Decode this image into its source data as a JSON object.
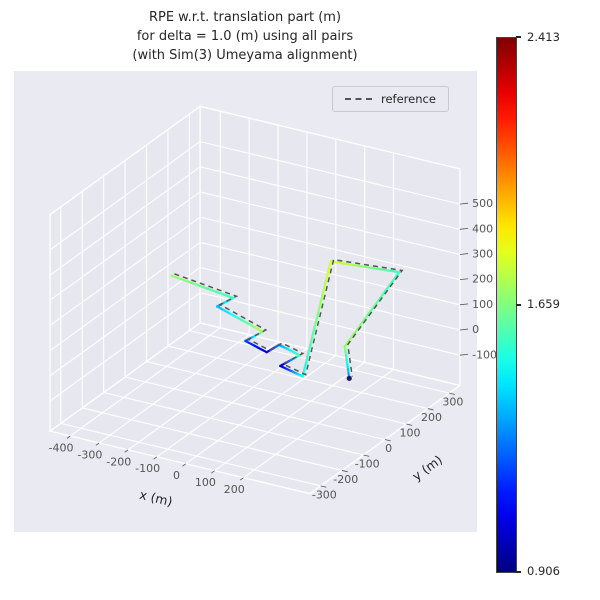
{
  "title": {
    "lines": [
      "RPE w.r.t. translation part (m)",
      "for delta = 1.0 (m) using all pairs",
      "(with Sim(3) Umeyama alignment)"
    ]
  },
  "legend": {
    "label": "reference"
  },
  "colorbar": {
    "max": "2.413",
    "mid": "1.659",
    "min": "0.906"
  },
  "styles": {
    "axes_bg": "#eaeaf2",
    "pane_bg": "#e7e7f0",
    "grid": "#ffffff",
    "tick_color": "#555555",
    "label_color": "#262626",
    "reference_color": "#555555",
    "end_marker_color": "#1b1b6e"
  },
  "chart_data": {
    "type": "line",
    "subtype": "trajectory-3d",
    "title": "RPE w.r.t. translation part (m) for delta = 1.0 (m) using all pairs (with Sim(3) Umeyama alignment)",
    "xlabel": "x (m)",
    "ylabel": "y (m)",
    "zlabel": "",
    "xlim": [
      -470,
      430
    ],
    "ylim": [
      -350,
      350
    ],
    "zlim": [
      -220,
      640
    ],
    "xticks": [
      -400,
      -300,
      -200,
      -100,
      0,
      100,
      200
    ],
    "yticks": [
      -300,
      -200,
      -100,
      0,
      100,
      200,
      300
    ],
    "zticks": [
      -100,
      0,
      100,
      200,
      300,
      400,
      500
    ],
    "view": {
      "elev": 30,
      "azim": -60
    },
    "colormap": "jet",
    "vmin": 0.906,
    "vmax": 2.413,
    "colorbar_ticks": [
      0.906,
      1.659,
      2.413
    ],
    "legend": [
      "reference"
    ],
    "grid": true,
    "trajectory": {
      "points": [
        [
          -458,
          200,
          63
        ],
        [
          -184,
          120,
          99
        ],
        [
          -196,
          60,
          99
        ],
        [
          -8,
          20,
          75
        ],
        [
          -20,
          -45,
          75
        ],
        [
          65,
          -60,
          63
        ],
        [
          71,
          -10,
          63
        ],
        [
          150,
          -20,
          50
        ],
        [
          138,
          -95,
          50
        ],
        [
          223,
          -105,
          38
        ],
        [
          138,
          140,
          321
        ],
        [
          327,
          205,
          290
        ],
        [
          302,
          -15,
          124
        ],
        [
          351,
          -60,
          38
        ]
      ],
      "errors": [
        1.7,
        1.55,
        1.35,
        1.75,
        1.2,
        1.05,
        1.3,
        1.6,
        1.0,
        1.5,
        1.8,
        1.55,
        1.7,
        1.3
      ]
    },
    "reference": {
      "style": "dashed",
      "color": "#555555",
      "offset": [
        6,
        6,
        5
      ]
    }
  }
}
